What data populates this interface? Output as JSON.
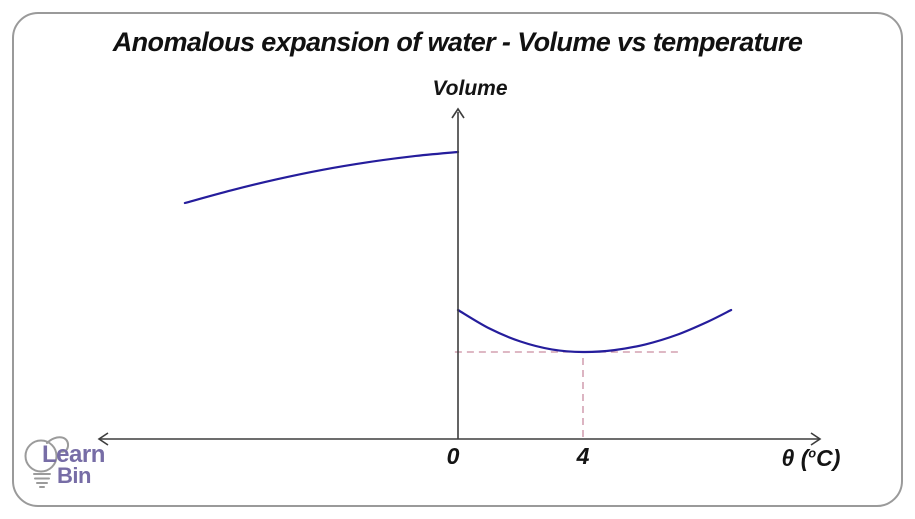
{
  "title": "Anomalous expansion of water - Volume vs temperature",
  "colors": {
    "curve": "#251d9c",
    "guide": "#c98da1",
    "axis": "#3d3d3d",
    "text": "#141414",
    "frame_border": "#9a9a9a",
    "logo_text": "#776da6",
    "logo_bulb": "#9b9b9b"
  },
  "chart_data": {
    "type": "line",
    "title": "Anomalous expansion of water - Volume vs temperature",
    "ylabel": "Volume",
    "xlabel": {
      "prefix": "θ (",
      "sup": "o",
      "suffix": "C)"
    },
    "x_ticks": [
      {
        "value": 0,
        "label": "0"
      },
      {
        "value": 4,
        "label": "4"
      }
    ],
    "x_range": [
      -11.5,
      11.6
    ],
    "grid": false,
    "legend": false,
    "axis_arrows": {
      "y": "up",
      "x": "both"
    },
    "series": [
      {
        "name": "ice-branch-below-0C",
        "points": [
          [
            -8.74,
            2.36
          ],
          [
            -7.25,
            2.487
          ],
          [
            -5.8,
            2.597
          ],
          [
            -4.35,
            2.691
          ],
          [
            -2.9,
            2.767
          ],
          [
            -1.45,
            2.827
          ],
          [
            0,
            2.87
          ]
        ]
      },
      {
        "name": "water-branch-above-0C",
        "points": [
          [
            0,
            1.29
          ],
          [
            1,
            1.106
          ],
          [
            2,
            0.975
          ],
          [
            3,
            0.896
          ],
          [
            4,
            0.87
          ],
          [
            5,
            0.889
          ],
          [
            6,
            0.946
          ],
          [
            7,
            1.041
          ],
          [
            8,
            1.174
          ],
          [
            8.74,
            1.29
          ]
        ]
      }
    ],
    "guides": {
      "horizontal": {
        "v": 0.87,
        "theta_from": -0.1,
        "theta_to": 7.1
      },
      "vertical": {
        "theta": 4,
        "v_from": 0.02,
        "v_to": 0.87
      }
    },
    "minimum_point": {
      "theta": 4,
      "volume": 0.87
    }
  },
  "logo": {
    "line1": "Learn",
    "line2": "Bin"
  }
}
